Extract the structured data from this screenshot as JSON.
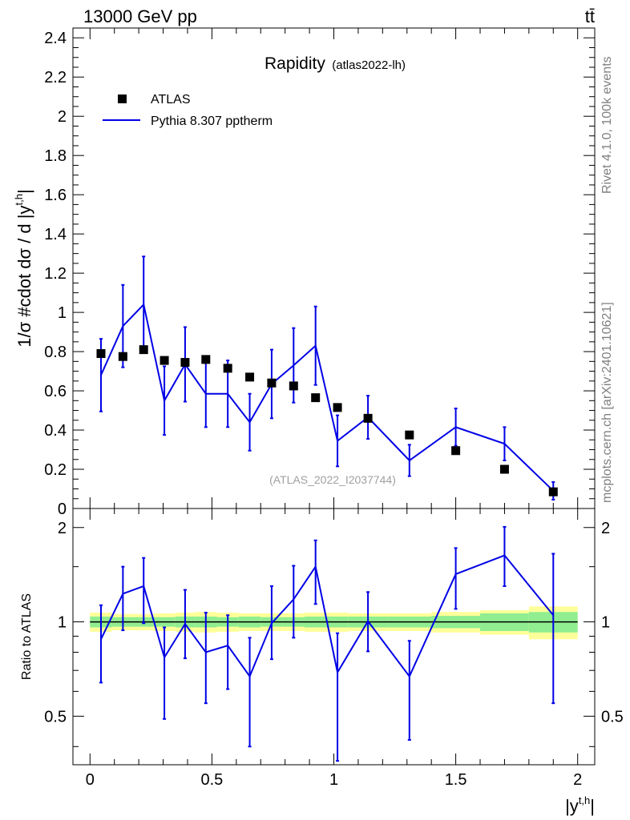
{
  "header": {
    "energy_label": "13000 GeV pp",
    "process_label": "tt̄"
  },
  "side_text": {
    "rivet": "Rivet 4.1.0,  100k events",
    "mcplots": "mcplots.cern.ch [arXiv:2401.10621]"
  },
  "colors": {
    "mc_line": "#0000e6",
    "band_inner": "#90ee90",
    "band_outer": "#ffff99",
    "data_marker": "#000000"
  },
  "chart_data": [
    {
      "type": "scatter",
      "title": "Rapidity",
      "title_suffix": "(atlas2022-lh)",
      "ylabel": "1/σ #cdot dσ / d |y^{t,h}|",
      "ylabel_main": "1/σ #cdot dσ / d |y",
      "ylabel_sup": "t,h",
      "ylabel_end": "|",
      "ylim": [
        0,
        2.45
      ],
      "yticks": [
        "0",
        "0.2",
        "0.4",
        "0.6",
        "0.8",
        "1",
        "1.2",
        "1.4",
        "1.6",
        "1.8",
        "2",
        "2.2",
        "2.4"
      ],
      "watermark": "(ATLAS_2022_I2037744)",
      "legend": [
        "ATLAS",
        "Pythia 8.307 pptherm"
      ],
      "series": [
        {
          "name": "ATLAS",
          "x": [
            0.045,
            0.135,
            0.22,
            0.305,
            0.39,
            0.475,
            0.565,
            0.655,
            0.745,
            0.835,
            0.925,
            1.015,
            1.14,
            1.31,
            1.5,
            1.7,
            1.9
          ],
          "y": [
            0.79,
            0.775,
            0.81,
            0.755,
            0.745,
            0.76,
            0.715,
            0.67,
            0.64,
            0.625,
            0.565,
            0.515,
            0.46,
            0.375,
            0.295,
            0.2,
            0.085
          ]
        },
        {
          "name": "Pythia 8.307 pptherm",
          "x": [
            0.045,
            0.135,
            0.22,
            0.305,
            0.39,
            0.475,
            0.565,
            0.655,
            0.745,
            0.835,
            0.925,
            1.015,
            1.14,
            1.31,
            1.5,
            1.7,
            1.9
          ],
          "y": [
            0.68,
            0.93,
            1.04,
            0.55,
            0.735,
            0.585,
            0.585,
            0.44,
            0.635,
            0.73,
            0.83,
            0.345,
            0.465,
            0.245,
            0.415,
            0.33,
            0.09
          ],
          "err": [
            0.185,
            0.21,
            0.245,
            0.175,
            0.19,
            0.17,
            0.17,
            0.145,
            0.175,
            0.19,
            0.2,
            0.13,
            0.11,
            0.08,
            0.095,
            0.085,
            0.045
          ]
        }
      ]
    },
    {
      "type": "line",
      "ylabel": "Ratio to ATLAS",
      "xlabel": "|y^{t,h}|",
      "xlabel_main": "|y",
      "xlabel_sup": "t,h",
      "xlabel_end": "|",
      "xlim": [
        -0.07,
        2.07
      ],
      "ylim": [
        0.35,
        2.3
      ],
      "scale": "log",
      "xticks": [
        "0",
        "0.5",
        "1",
        "1.5",
        "2"
      ],
      "yticks_left": [
        "0.5",
        "1",
        "2"
      ],
      "yticks_right": [
        "0.5",
        "1",
        "2"
      ],
      "reference": 1,
      "bin_edges": [
        0,
        0.09,
        0.18,
        0.26,
        0.35,
        0.43,
        0.52,
        0.61,
        0.7,
        0.79,
        0.88,
        0.97,
        1.06,
        1.22,
        1.4,
        1.6,
        1.8,
        2.0
      ],
      "band_inner": [
        0.04,
        0.035,
        0.035,
        0.035,
        0.04,
        0.04,
        0.035,
        0.04,
        0.035,
        0.035,
        0.04,
        0.04,
        0.04,
        0.04,
        0.045,
        0.065,
        0.075
      ],
      "band_outer": [
        0.07,
        0.06,
        0.06,
        0.065,
        0.07,
        0.075,
        0.07,
        0.065,
        0.065,
        0.065,
        0.07,
        0.07,
        0.065,
        0.065,
        0.075,
        0.09,
        0.12
      ],
      "series": [
        {
          "name": "Pythia 8.307 pptherm",
          "x": [
            0.045,
            0.135,
            0.22,
            0.305,
            0.39,
            0.475,
            0.565,
            0.655,
            0.745,
            0.835,
            0.925,
            1.015,
            1.14,
            1.31,
            1.5,
            1.7,
            1.9
          ],
          "y": [
            0.88,
            1.23,
            1.3,
            0.77,
            0.985,
            0.8,
            0.84,
            0.67,
            0.99,
            1.18,
            1.5,
            0.69,
            1.005,
            0.67,
            1.42,
            1.63,
            1.05
          ],
          "err_lo": [
            0.24,
            0.29,
            0.31,
            0.28,
            0.22,
            0.25,
            0.23,
            0.27,
            0.23,
            0.29,
            0.36,
            0.33,
            0.2,
            0.25,
            0.32,
            0.33,
            0.5
          ],
          "err_hi": [
            0.25,
            0.27,
            0.3,
            0.19,
            0.28,
            0.27,
            0.21,
            0.22,
            0.31,
            0.33,
            0.32,
            0.23,
            0.24,
            0.2,
            0.3,
            0.38,
            0.6
          ]
        }
      ]
    }
  ]
}
